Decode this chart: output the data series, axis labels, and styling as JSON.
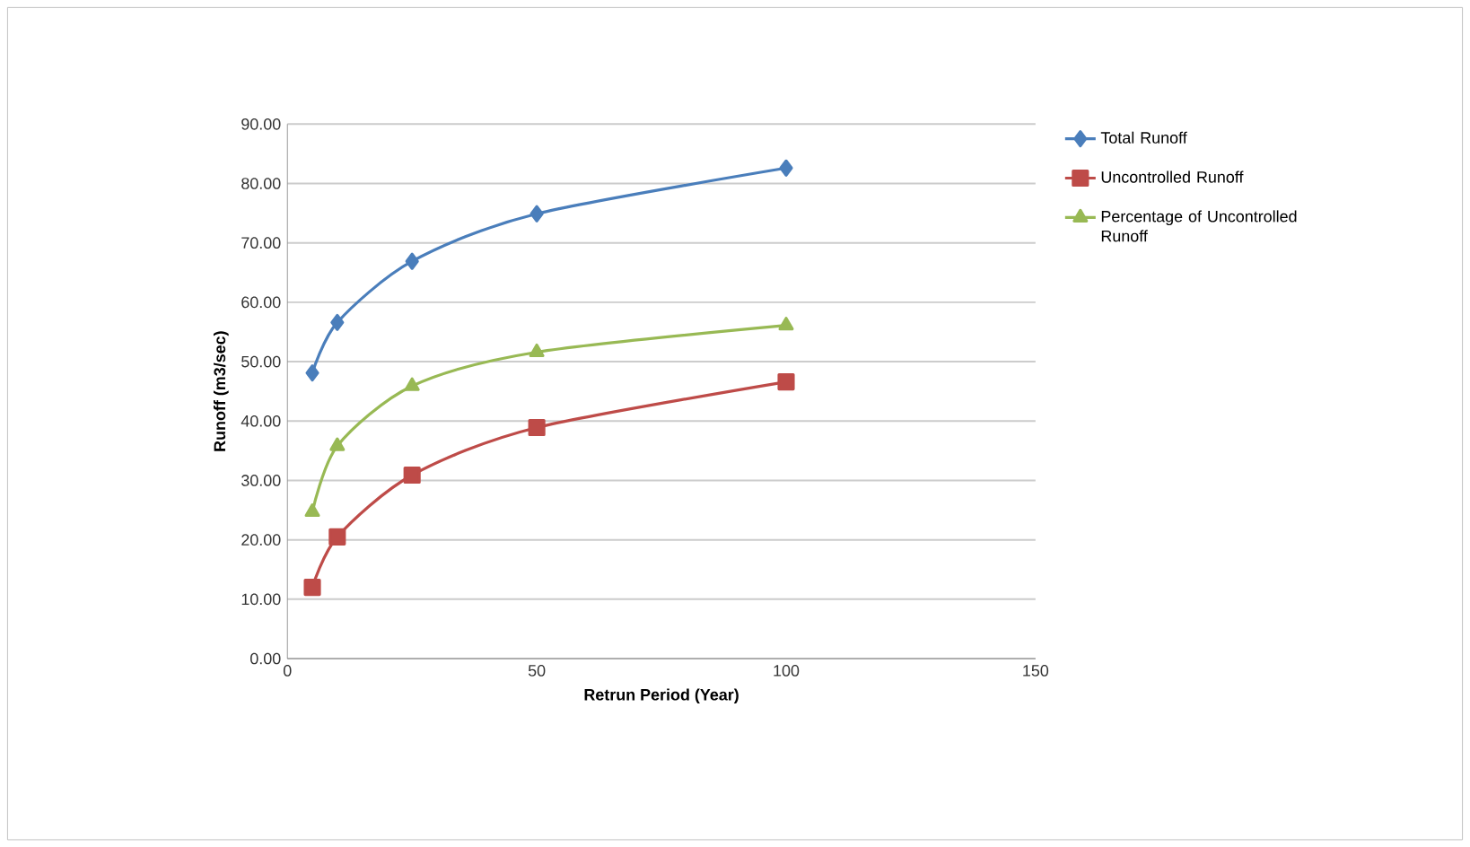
{
  "chart_data": {
    "type": "line",
    "xlabel": "Retrun Period (Year)",
    "ylabel": "Runoff  (m3/sec)",
    "x": [
      5,
      10,
      25,
      50,
      100
    ],
    "series": [
      {
        "name": "Total Runoff",
        "color": "#4a7ebb",
        "marker": "diamond",
        "values": [
          48.1,
          56.6,
          66.9,
          74.9,
          82.6
        ]
      },
      {
        "name": "Uncontrolled Runoff",
        "color": "#be4b48",
        "marker": "square",
        "values": [
          12.0,
          20.5,
          30.9,
          38.9,
          46.6
        ]
      },
      {
        "name": "Percentage of Uncontrolled Runoff",
        "color": "#98b954",
        "marker": "triangle",
        "values": [
          24.7,
          35.8,
          45.9,
          51.6,
          56.1
        ]
      }
    ],
    "xlim": [
      0,
      150
    ],
    "xticks": [
      0,
      50,
      100,
      150
    ],
    "ylim": [
      0,
      90
    ],
    "yticks": [
      {
        "value": 0,
        "label": "0.00"
      },
      {
        "value": 10,
        "label": "10.00"
      },
      {
        "value": 20,
        "label": "20.00"
      },
      {
        "value": 30,
        "label": "30.00"
      },
      {
        "value": 40,
        "label": "40.00"
      },
      {
        "value": 50,
        "label": "50.00"
      },
      {
        "value": 60,
        "label": "60.00"
      },
      {
        "value": 70,
        "label": "70.00"
      },
      {
        "value": 80,
        "label": "80.00"
      },
      {
        "value": 90,
        "label": "90.00"
      }
    ],
    "grid": "y",
    "legend": "right",
    "line_style": "solid"
  }
}
